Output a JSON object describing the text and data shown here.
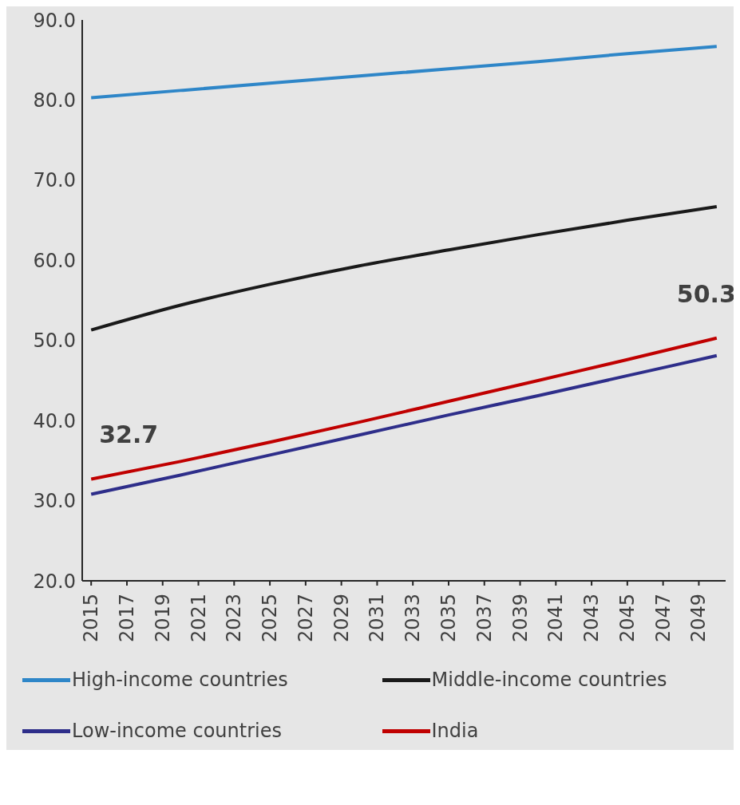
{
  "chart_data": {
    "type": "line",
    "x": [
      2015,
      2020,
      2025,
      2030,
      2035,
      2040,
      2045,
      2050
    ],
    "series": [
      {
        "name": "High-income countries",
        "color": "#2e86c8",
        "values": [
          80.3,
          81.2,
          82.1,
          83.0,
          83.9,
          84.8,
          85.8,
          86.7
        ]
      },
      {
        "name": "Middle-income countries",
        "color": "#1a1a1a",
        "values": [
          51.3,
          54.4,
          57.0,
          59.3,
          61.3,
          63.2,
          65.0,
          66.7
        ]
      },
      {
        "name": "Low-income countries",
        "color": "#2e2e8a",
        "values": [
          30.8,
          33.2,
          35.7,
          38.2,
          40.7,
          43.1,
          45.6,
          48.1
        ]
      },
      {
        "name": "India",
        "color": "#c00000",
        "values": [
          32.7,
          34.9,
          37.3,
          39.8,
          42.4,
          45.0,
          47.6,
          50.3
        ]
      }
    ],
    "annotations": [
      {
        "text": "32.7",
        "x": 2015,
        "y": 32.7
      },
      {
        "text": "50.3",
        "x": 2050,
        "y": 50.3
      }
    ],
    "xlim": [
      2014.5,
      2050.5
    ],
    "xticks": [
      2015,
      2017,
      2019,
      2021,
      2023,
      2025,
      2027,
      2029,
      2031,
      2033,
      2035,
      2037,
      2039,
      2041,
      2043,
      2045,
      2047,
      2049
    ],
    "ylim": [
      20,
      90
    ],
    "yticks": [
      {
        "value": 20,
        "label": "20.0"
      },
      {
        "value": 30,
        "label": "30.0"
      },
      {
        "value": 40,
        "label": "40.0"
      },
      {
        "value": 50,
        "label": "50.0"
      },
      {
        "value": 60,
        "label": "60.0"
      },
      {
        "value": 70,
        "label": "70.0"
      },
      {
        "value": 80,
        "label": "80.0"
      },
      {
        "value": 90,
        "label": "90.0"
      }
    ],
    "grid": false,
    "legend": "bottom",
    "marker": "none",
    "line_style": "solid"
  }
}
